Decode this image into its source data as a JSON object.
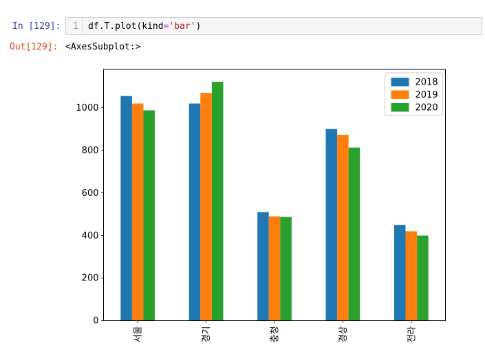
{
  "notebook": {
    "in_prompt": "In [129]:",
    "out_prompt": "Out[129]:",
    "line_number": "1",
    "code_parts": {
      "head": "df.T.plot(kind",
      "operator": "=",
      "string": "'bar'",
      "tail": ")"
    },
    "output_text": "<AxesSubplot:>"
  },
  "colors": {
    "in_prompt": "#303F9F",
    "out_prompt": "#D84315",
    "cell_background": "#f7f7f7",
    "cell_border": "#cfcfcf",
    "line_number": "#999999",
    "code_operator": "#AA22FF",
    "code_string": "#BA2121",
    "series_2018": "#1f77b4",
    "series_2019": "#ff7f0e",
    "series_2020": "#2ca02c"
  },
  "chart_data": {
    "type": "bar",
    "title": "",
    "xlabel": "",
    "ylabel": "",
    "categories": [
      "서울",
      "경기",
      "충청",
      "경상",
      "전라"
    ],
    "series": [
      {
        "name": "2018",
        "color": "#1f77b4",
        "values": [
          1055,
          1020,
          510,
          900,
          450
        ]
      },
      {
        "name": "2019",
        "color": "#ff7f0e",
        "values": [
          1020,
          1070,
          490,
          873,
          420
        ]
      },
      {
        "name": "2020",
        "color": "#2ca02c",
        "values": [
          988,
          1122,
          487,
          813,
          400
        ]
      }
    ],
    "yticks": [
      0,
      200,
      400,
      600,
      800,
      1000
    ],
    "ylim": [
      0,
      1180
    ],
    "xtick_rotation": 90,
    "legend_position": "upper right",
    "grid": false,
    "bar_width_fraction": 0.5
  }
}
